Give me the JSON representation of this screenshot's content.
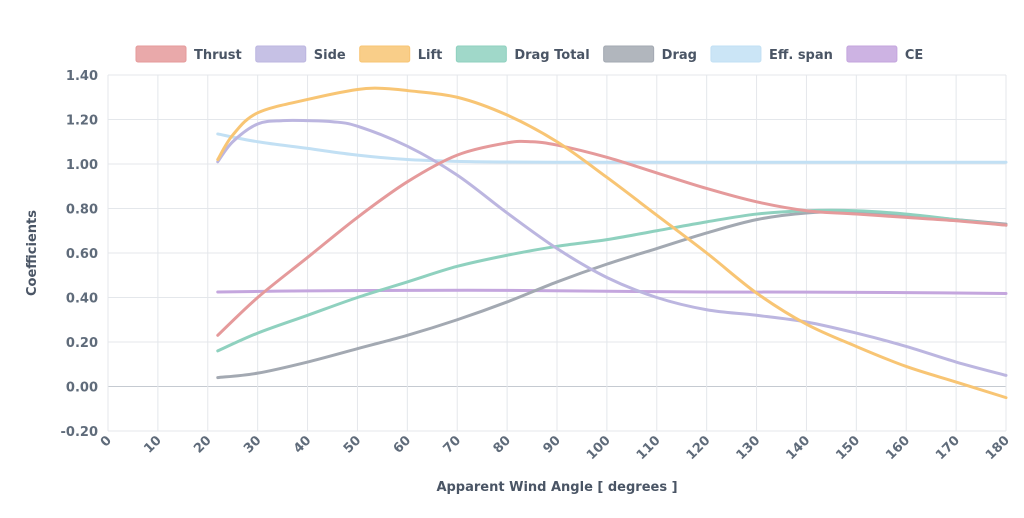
{
  "chart_data": {
    "type": "line",
    "xlabel": "Apparent Wind Angle [ degrees ]",
    "ylabel": "Coefficients",
    "xlim": [
      0,
      180
    ],
    "ylim": [
      -0.2,
      1.4
    ],
    "xticks": [
      0,
      10,
      20,
      30,
      40,
      50,
      60,
      70,
      80,
      90,
      100,
      110,
      120,
      130,
      140,
      150,
      160,
      170,
      180
    ],
    "yticks": [
      -0.2,
      0,
      0.2,
      0.4,
      0.6,
      0.8,
      1.0,
      1.2,
      1.4
    ],
    "ytick_labels": [
      "-0.20",
      "0.00",
      "0.20",
      "0.40",
      "0.60",
      "0.80",
      "1.00",
      "1.20",
      "1.40"
    ],
    "grid": true,
    "legend_position": "top-center",
    "series": [
      {
        "name": "Thrust",
        "color": "#e59a9b",
        "x": [
          22,
          30,
          40,
          50,
          60,
          70,
          80,
          85,
          90,
          100,
          110,
          120,
          130,
          140,
          150,
          160,
          170,
          180
        ],
        "y": [
          0.23,
          0.4,
          0.58,
          0.76,
          0.92,
          1.04,
          1.095,
          1.1,
          1.085,
          1.03,
          0.96,
          0.89,
          0.83,
          0.79,
          0.775,
          0.76,
          0.745,
          0.725
        ]
      },
      {
        "name": "Side",
        "color": "#bcb6e0",
        "x": [
          22,
          25,
          30,
          35,
          40,
          45,
          50,
          60,
          70,
          80,
          90,
          100,
          110,
          120,
          130,
          140,
          150,
          160,
          170,
          180
        ],
        "y": [
          1.01,
          1.1,
          1.18,
          1.195,
          1.195,
          1.19,
          1.17,
          1.08,
          0.95,
          0.78,
          0.62,
          0.49,
          0.4,
          0.345,
          0.32,
          0.29,
          0.24,
          0.18,
          0.11,
          0.05
        ]
      },
      {
        "name": "Lift",
        "color": "#f8c574",
        "x": [
          22,
          25,
          30,
          40,
          50,
          55,
          60,
          70,
          80,
          90,
          100,
          110,
          120,
          130,
          140,
          150,
          160,
          170,
          180
        ],
        "y": [
          1.02,
          1.13,
          1.23,
          1.29,
          1.335,
          1.34,
          1.33,
          1.3,
          1.22,
          1.1,
          0.94,
          0.77,
          0.6,
          0.42,
          0.28,
          0.18,
          0.09,
          0.02,
          -0.05
        ]
      },
      {
        "name": "Drag Total",
        "color": "#8fd1bf",
        "x": [
          22,
          30,
          40,
          50,
          60,
          70,
          80,
          90,
          100,
          110,
          120,
          130,
          140,
          150,
          160,
          170,
          180
        ],
        "y": [
          0.16,
          0.24,
          0.32,
          0.4,
          0.47,
          0.54,
          0.59,
          0.63,
          0.66,
          0.7,
          0.74,
          0.775,
          0.79,
          0.79,
          0.775,
          0.75,
          0.725
        ]
      },
      {
        "name": "Drag",
        "color": "#a3a9b2",
        "x": [
          22,
          30,
          40,
          50,
          60,
          70,
          80,
          90,
          100,
          110,
          120,
          130,
          140,
          150,
          160,
          170,
          180
        ],
        "y": [
          0.04,
          0.06,
          0.11,
          0.17,
          0.23,
          0.3,
          0.38,
          0.47,
          0.55,
          0.62,
          0.69,
          0.75,
          0.78,
          0.785,
          0.77,
          0.75,
          0.73
        ]
      },
      {
        "name": "Eff. span",
        "color": "#c2e0f4",
        "x": [
          22,
          30,
          40,
          50,
          60,
          70,
          80,
          90,
          100,
          120,
          140,
          160,
          180
        ],
        "y": [
          1.135,
          1.1,
          1.07,
          1.04,
          1.02,
          1.012,
          1.009,
          1.008,
          1.008,
          1.008,
          1.008,
          1.008,
          1.008
        ]
      },
      {
        "name": "CE",
        "color": "#c4a6de",
        "x": [
          22,
          40,
          60,
          80,
          100,
          120,
          140,
          160,
          180
        ],
        "y": [
          0.425,
          0.43,
          0.432,
          0.432,
          0.428,
          0.425,
          0.424,
          0.422,
          0.418
        ]
      }
    ]
  }
}
